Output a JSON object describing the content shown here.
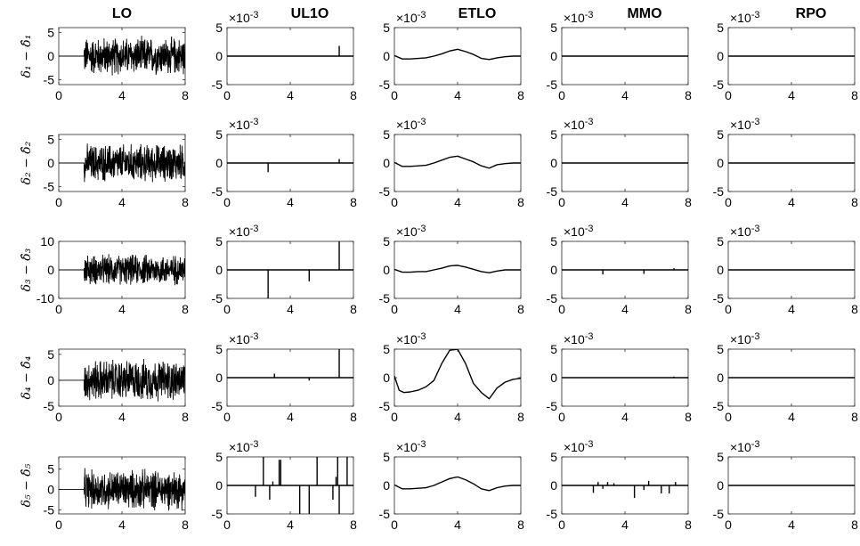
{
  "chart_data": {
    "type": "line",
    "layout": "5x5 subplot grid",
    "column_titles": [
      "LO",
      "UL1O",
      "ETLO",
      "MMO",
      "RPO"
    ],
    "row_ylabels": [
      "δ₁ − δ̂₁",
      "δ₂ − δ̂₂",
      "δ₃ − δ̂₃",
      "δ₄ − δ̂₄",
      "δ₅ − δ̂₅"
    ],
    "xlim": [
      0,
      8
    ],
    "xticks": [
      0,
      4,
      8
    ],
    "exponent_label": "×10",
    "exponent_power": "-3",
    "lo_ylim": [
      [
        -6,
        6
      ],
      [
        -6,
        6
      ],
      [
        -10,
        10
      ],
      [
        -5,
        6
      ],
      [
        -6,
        8
      ]
    ],
    "lo_yticks": [
      [
        -5,
        0,
        5
      ],
      [
        -5,
        0,
        5
      ],
      [
        -10,
        0,
        10
      ],
      [
        -5,
        0,
        5
      ],
      [
        -5,
        0,
        5
      ]
    ],
    "scaled_ylim": [
      -5,
      5
    ],
    "scaled_yticks": [
      -5,
      0,
      5
    ],
    "lo_noise": {
      "start": 1.6,
      "end": 8,
      "amplitude": [
        4.5,
        4.5,
        6.0,
        4.5,
        5.5
      ]
    },
    "ul1o_spikes": [
      [
        {
          "x": 7.1,
          "y": 1.8
        }
      ],
      [
        {
          "x": 2.6,
          "y": -1.6
        },
        {
          "x": 7.1,
          "y": 0.7
        }
      ],
      [
        {
          "x": 2.6,
          "y": -5
        },
        {
          "x": 5.2,
          "y": -2
        },
        {
          "x": 7.1,
          "y": 5
        }
      ],
      [
        {
          "x": 3.0,
          "y": 0.7
        },
        {
          "x": 5.2,
          "y": -0.5
        },
        {
          "x": 7.1,
          "y": 5
        }
      ],
      [
        {
          "x": 1.8,
          "y": -2
        },
        {
          "x": 2.3,
          "y": 5
        },
        {
          "x": 2.7,
          "y": -2.5
        },
        {
          "x": 2.9,
          "y": 0.7
        },
        {
          "x": 3.3,
          "y": 4.5
        },
        {
          "x": 3.4,
          "y": 4.5
        },
        {
          "x": 4.6,
          "y": -5
        },
        {
          "x": 5.2,
          "y": -5
        },
        {
          "x": 5.7,
          "y": 5
        },
        {
          "x": 6.7,
          "y": -2.5
        },
        {
          "x": 6.9,
          "y": 1.5
        },
        {
          "x": 7.0,
          "y": 5
        },
        {
          "x": 7.1,
          "y": -5
        },
        {
          "x": 7.6,
          "y": 5
        }
      ]
    ],
    "etlo_curves": [
      {
        "x": [
          0,
          0.5,
          1,
          1.5,
          2,
          2.5,
          3,
          3.5,
          4,
          4.5,
          5,
          5.5,
          6,
          6.5,
          7,
          7.5,
          8
        ],
        "y": [
          0.1,
          -0.5,
          -0.5,
          -0.4,
          -0.3,
          0,
          0.4,
          0.9,
          1.2,
          0.8,
          0.3,
          -0.4,
          -0.6,
          -0.3,
          -0.1,
          0,
          0
        ]
      },
      {
        "x": [
          0,
          0.5,
          1,
          1.5,
          2,
          2.5,
          3,
          3.5,
          4,
          4.5,
          5,
          5.5,
          6,
          6.5,
          7,
          7.5,
          8
        ],
        "y": [
          0.1,
          -0.6,
          -0.6,
          -0.5,
          -0.4,
          0,
          0.5,
          1.0,
          1.2,
          0.7,
          0.2,
          -0.5,
          -0.9,
          -0.3,
          -0.1,
          0,
          0
        ]
      },
      {
        "x": [
          0,
          0.5,
          1,
          1.5,
          2,
          2.5,
          3,
          3.5,
          4,
          4.5,
          5,
          5.5,
          6,
          6.5,
          7,
          7.5,
          8
        ],
        "y": [
          0.1,
          -0.4,
          -0.4,
          -0.3,
          -0.3,
          0,
          0.3,
          0.7,
          0.8,
          0.5,
          0.1,
          -0.3,
          -0.5,
          -0.2,
          0,
          0,
          0
        ]
      },
      {
        "x": [
          0,
          0.3,
          0.6,
          1,
          1.5,
          2,
          2.5,
          3,
          3.5,
          4,
          4.5,
          5,
          5.5,
          6,
          6.5,
          7,
          7.5,
          8
        ],
        "y": [
          0.3,
          -2.2,
          -2.6,
          -2.5,
          -2.2,
          -1.6,
          -0.5,
          2.5,
          4.8,
          5,
          2.5,
          -1,
          -2.6,
          -3.7,
          -1.8,
          -0.8,
          -0.3,
          -0.1
        ]
      },
      {
        "x": [
          0,
          0.5,
          1,
          1.5,
          2,
          2.5,
          3,
          3.5,
          4,
          4.5,
          5,
          5.5,
          6,
          6.5,
          7,
          7.5,
          8
        ],
        "y": [
          0.1,
          -0.6,
          -0.6,
          -0.5,
          -0.4,
          0,
          0.6,
          1.2,
          1.5,
          1.0,
          0.3,
          -0.6,
          -0.9,
          -0.4,
          -0.1,
          0,
          0
        ]
      }
    ],
    "mmo_spikes": [
      [],
      [],
      [
        {
          "x": 2.6,
          "y": -0.8
        },
        {
          "x": 5.2,
          "y": -0.7
        },
        {
          "x": 7.1,
          "y": 0.3
        }
      ],
      [
        {
          "x": 7.1,
          "y": 0.2
        }
      ],
      [
        {
          "x": 2.0,
          "y": -1.3
        },
        {
          "x": 2.3,
          "y": 0.6
        },
        {
          "x": 2.6,
          "y": -0.6
        },
        {
          "x": 2.9,
          "y": 0.6
        },
        {
          "x": 3.3,
          "y": 0.4
        },
        {
          "x": 4.6,
          "y": -2.2
        },
        {
          "x": 5.2,
          "y": -0.8
        },
        {
          "x": 5.5,
          "y": 0.8
        },
        {
          "x": 6.3,
          "y": -1.4
        },
        {
          "x": 6.8,
          "y": -1.4
        },
        {
          "x": 7.2,
          "y": 0.6
        }
      ]
    ],
    "rpo": "all zero"
  }
}
